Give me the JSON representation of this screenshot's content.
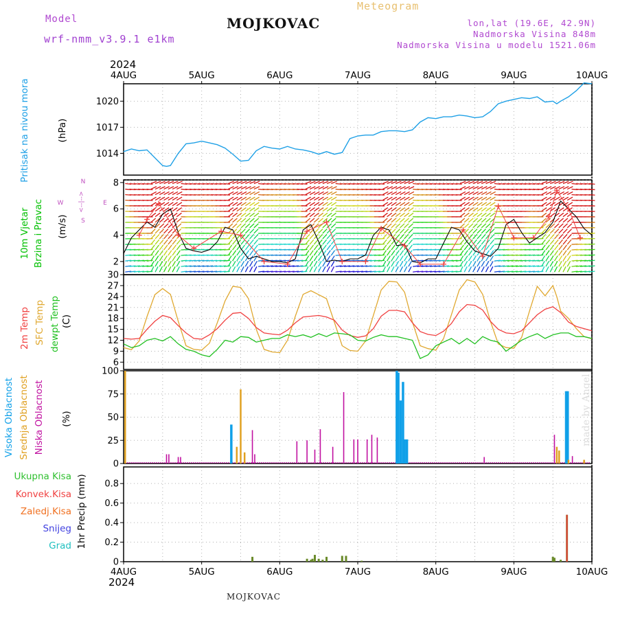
{
  "header": {
    "title": "MOJKOVAC",
    "meteogram_label": "Meteogram",
    "model_label": "Model",
    "model_name": "wrf-nmm_v3.9.1 e1km",
    "lonlat": "lon,lat (19.6E, 42.9N)",
    "elevation": "Nadmorska Visina 848m",
    "model_elevation": "Nadmorska Visina u modelu 1521.06m",
    "year_top": "2024",
    "year_bottom": "2024"
  },
  "footer": {
    "station": "MOJKOVAC",
    "watermark": "made by Angel"
  },
  "colors": {
    "pressure": "#1ea0e6",
    "wind_green": "#00c000",
    "temp2m": "#f04040",
    "sfc": "#e0a830",
    "dewpoint": "#20c020",
    "high_cloud": "#10a0e8",
    "mid_cloud": "#e0a020",
    "low_cloud": "#c010a0",
    "total_precip": "#30c030",
    "conv_precip": "#f04040",
    "frz_precip": "#f07020",
    "snow": "#4040e0",
    "hail": "#20c0c0",
    "wind_label": "#c050c0"
  },
  "x_axis": {
    "labels": [
      "4AUG",
      "5AUG",
      "6AUG",
      "7AUG",
      "8AUG",
      "9AUG",
      "10AUG"
    ],
    "range_days": [
      0,
      6
    ]
  },
  "panels": {
    "pressure": {
      "labels": [
        "Pritisak na nivou mora",
        "(hPa)"
      ],
      "ticks": [
        "1020",
        "1017",
        "1014"
      ],
      "ylim": [
        1011.5,
        1022
      ]
    },
    "wind": {
      "labels": [
        "10m Vjetar",
        "Brzina i Pravac",
        "(m/s)"
      ],
      "ticks": [
        "8",
        "6",
        "4",
        "2"
      ],
      "ylim": [
        1,
        8.2
      ],
      "compass": {
        "n": "N",
        "s": "S",
        "e": "E",
        "w": "W",
        "arrow": "<--|-->"
      }
    },
    "temperature": {
      "labels": [
        "2m Temp",
        "SFC Temp",
        "dewpt Temp",
        "(C)"
      ],
      "ticks": [
        "30",
        "27",
        "24",
        "21",
        "18",
        "15",
        "12",
        "9",
        "6"
      ],
      "ylim": [
        4,
        30
      ]
    },
    "cloud": {
      "labels": [
        "Visoka Oblacnost",
        "Srednja Oblacnost",
        "Niska Oblacnost",
        "(%)"
      ],
      "ticks": [
        "100",
        "75",
        "50",
        "25",
        "0"
      ],
      "ylim": [
        0,
        100
      ]
    },
    "precip": {
      "labels": [
        "Ukupna Kisa",
        "Konvek.Kisa",
        "Zaledj.Kisa",
        "Snijeg",
        "Grad",
        "1hr Precip (mm)"
      ],
      "ticks": [
        "0.8",
        "0.6",
        "0.4",
        "0.2",
        "0"
      ],
      "ylim": [
        0,
        0.97
      ]
    }
  },
  "chart_data": [
    {
      "type": "line",
      "name": "pressure",
      "x_unit": "days since 4AUG 00Z",
      "series": [
        {
          "name": "Pritisak na nivou mora",
          "x": [
            0,
            0.1,
            0.2,
            0.3,
            0.4,
            0.5,
            0.55,
            0.6,
            0.7,
            0.8,
            0.9,
            1.0,
            1.1,
            1.2,
            1.3,
            1.4,
            1.5,
            1.6,
            1.7,
            1.8,
            1.9,
            2.0,
            2.1,
            2.2,
            2.3,
            2.4,
            2.5,
            2.6,
            2.7,
            2.8,
            2.9,
            3.0,
            3.1,
            3.2,
            3.3,
            3.4,
            3.5,
            3.6,
            3.7,
            3.8,
            3.9,
            4.0,
            4.1,
            4.2,
            4.3,
            4.4,
            4.5,
            4.6,
            4.7,
            4.8,
            4.9,
            5.0,
            5.1,
            5.2,
            5.3,
            5.4,
            5.5,
            5.55,
            5.6,
            5.7,
            5.8,
            5.9,
            6.0
          ],
          "y": [
            1014.2,
            1014.5,
            1014.3,
            1014.4,
            1013.5,
            1012.6,
            1012.5,
            1012.6,
            1014.0,
            1015.1,
            1015.2,
            1015.4,
            1015.2,
            1015.0,
            1014.6,
            1013.9,
            1013.1,
            1013.2,
            1014.3,
            1014.8,
            1014.6,
            1014.5,
            1014.8,
            1014.5,
            1014.4,
            1014.2,
            1013.9,
            1014.2,
            1013.9,
            1014.1,
            1015.7,
            1016.0,
            1016.1,
            1016.1,
            1016.5,
            1016.6,
            1016.6,
            1016.5,
            1016.7,
            1017.6,
            1018.1,
            1018.0,
            1018.2,
            1018.2,
            1018.4,
            1018.3,
            1018.1,
            1018.2,
            1018.8,
            1019.7,
            1020.0,
            1020.2,
            1020.4,
            1020.3,
            1020.5,
            1019.9,
            1020.0,
            1019.7,
            1020.0,
            1020.5,
            1021.2,
            1022.1,
            1022.0
          ]
        }
      ]
    },
    {
      "type": "line",
      "name": "wind",
      "x_unit": "days since 4AUG 00Z",
      "series": [
        {
          "name": "wind speed",
          "x": [
            0,
            0.1,
            0.2,
            0.3,
            0.4,
            0.5,
            0.6,
            0.7,
            0.8,
            0.9,
            1.0,
            1.1,
            1.2,
            1.3,
            1.4,
            1.5,
            1.6,
            1.7,
            1.8,
            1.9,
            2.0,
            2.1,
            2.2,
            2.3,
            2.4,
            2.5,
            2.6,
            2.7,
            2.8,
            2.9,
            3.0,
            3.1,
            3.2,
            3.3,
            3.4,
            3.5,
            3.6,
            3.7,
            3.8,
            3.9,
            4.0,
            4.1,
            4.2,
            4.3,
            4.4,
            4.5,
            4.6,
            4.7,
            4.8,
            4.9,
            5.0,
            5.1,
            5.2,
            5.3,
            5.4,
            5.5,
            5.6,
            5.7,
            5.8,
            5.9,
            6.0
          ],
          "y": [
            2.6,
            3.8,
            4.4,
            5.0,
            4.6,
            5.6,
            6.0,
            4.2,
            3.0,
            2.8,
            2.7,
            2.9,
            3.5,
            4.6,
            4.4,
            3.0,
            2.2,
            2.4,
            2.2,
            2.0,
            2.0,
            1.9,
            2.2,
            4.4,
            4.8,
            3.5,
            2.0,
            2.1,
            2.0,
            2.2,
            2.2,
            2.5,
            4.0,
            4.6,
            4.4,
            3.2,
            3.3,
            2.0,
            1.9,
            2.2,
            2.2,
            3.4,
            4.6,
            4.4,
            3.5,
            2.8,
            2.6,
            2.4,
            3.0,
            4.8,
            5.2,
            4.2,
            3.4,
            3.8,
            4.2,
            5.0,
            6.6,
            6.0,
            5.4,
            4.5,
            4.0
          ]
        },
        {
          "name": "wind gust",
          "x": [
            0.2,
            0.3,
            0.45,
            0.7,
            0.9,
            1.25,
            1.5,
            1.8,
            2.1,
            2.35,
            2.6,
            2.8,
            3.1,
            3.3,
            3.6,
            3.8,
            4.1,
            4.35,
            4.6,
            4.8,
            5.0,
            5.25,
            5.45,
            5.55,
            5.7,
            5.85
          ],
          "y": [
            4.0,
            5.2,
            6.4,
            4.0,
            3.0,
            4.3,
            4.0,
            2.0,
            1.8,
            4.3,
            5.0,
            2.0,
            2.0,
            4.5,
            3.2,
            1.8,
            1.8,
            4.4,
            2.4,
            6.2,
            3.8,
            3.8,
            5.4,
            7.4,
            6.0,
            3.8
          ]
        }
      ]
    },
    {
      "type": "line",
      "name": "temperature",
      "x_unit": "days since 4AUG 00Z",
      "series": [
        {
          "name": "2m Temp",
          "x": [
            0,
            0.1,
            0.2,
            0.3,
            0.4,
            0.5,
            0.6,
            0.7,
            0.8,
            0.9,
            1.0,
            1.1,
            1.2,
            1.3,
            1.4,
            1.5,
            1.6,
            1.7,
            1.8,
            1.9,
            2.0,
            2.1,
            2.2,
            2.3,
            2.4,
            2.5,
            2.6,
            2.7,
            2.8,
            2.9,
            3.0,
            3.1,
            3.2,
            3.3,
            3.4,
            3.5,
            3.6,
            3.7,
            3.8,
            3.9,
            4.0,
            4.1,
            4.2,
            4.3,
            4.4,
            4.5,
            4.6,
            4.7,
            4.8,
            4.9,
            5.0,
            5.1,
            5.2,
            5.3,
            5.4,
            5.5,
            5.6,
            5.7,
            5.8,
            5.9,
            6.0
          ],
          "y": [
            12.5,
            12.3,
            12.5,
            15.0,
            17.2,
            18.8,
            18.2,
            16.0,
            14.0,
            12.5,
            12.3,
            13.5,
            15.2,
            17.5,
            19.4,
            19.6,
            18.0,
            15.5,
            14.0,
            13.7,
            13.5,
            14.8,
            16.8,
            18.4,
            18.6,
            18.8,
            18.4,
            17.5,
            14.8,
            13.3,
            12.8,
            13.2,
            15.2,
            18.6,
            20.2,
            20.2,
            19.8,
            16.8,
            14.4,
            13.6,
            13.3,
            14.5,
            16.6,
            19.8,
            21.8,
            21.6,
            20.3,
            17.2,
            15.0,
            14.0,
            13.8,
            14.6,
            16.8,
            19.0,
            20.5,
            21.2,
            19.6,
            17.0,
            15.8,
            15.2,
            14.6
          ]
        },
        {
          "name": "SFC Temp",
          "x": [
            0,
            0.1,
            0.2,
            0.3,
            0.4,
            0.5,
            0.6,
            0.7,
            0.8,
            0.9,
            1.0,
            1.1,
            1.2,
            1.3,
            1.4,
            1.5,
            1.6,
            1.7,
            1.8,
            1.9,
            2.0,
            2.1,
            2.2,
            2.3,
            2.4,
            2.5,
            2.6,
            2.7,
            2.8,
            2.9,
            3.0,
            3.1,
            3.2,
            3.3,
            3.4,
            3.5,
            3.6,
            3.7,
            3.8,
            3.9,
            4.0,
            4.1,
            4.2,
            4.3,
            4.4,
            4.5,
            4.6,
            4.7,
            4.8,
            4.9,
            5.0,
            5.1,
            5.2,
            5.3,
            5.4,
            5.5,
            5.55,
            5.6,
            5.7,
            5.8,
            5.9,
            6.0
          ],
          "y": [
            10.0,
            9.4,
            11.8,
            18.5,
            24.5,
            26.2,
            24.6,
            17.2,
            10.5,
            9.5,
            9.3,
            11.2,
            16.8,
            22.8,
            26.8,
            26.5,
            23.4,
            15.0,
            9.5,
            8.8,
            8.6,
            12.0,
            18.6,
            24.6,
            25.6,
            24.5,
            23.4,
            17.0,
            10.5,
            9.2,
            9.0,
            11.8,
            18.8,
            25.8,
            28.2,
            28.0,
            25.2,
            17.0,
            10.5,
            9.7,
            9.3,
            12.5,
            19.0,
            25.8,
            28.6,
            28.0,
            24.6,
            17.2,
            11.0,
            10.0,
            9.8,
            12.8,
            20.0,
            26.8,
            24.2,
            27.0,
            24.0,
            20.0,
            18.0,
            15.2,
            13.0,
            12.4
          ]
        },
        {
          "name": "dewpt Temp",
          "x": [
            0,
            0.1,
            0.2,
            0.3,
            0.4,
            0.5,
            0.6,
            0.7,
            0.8,
            0.9,
            1.0,
            1.1,
            1.2,
            1.3,
            1.4,
            1.5,
            1.6,
            1.7,
            1.8,
            1.9,
            2.0,
            2.1,
            2.2,
            2.3,
            2.4,
            2.5,
            2.6,
            2.7,
            2.8,
            2.9,
            3.0,
            3.1,
            3.2,
            3.3,
            3.4,
            3.5,
            3.6,
            3.7,
            3.8,
            3.9,
            4.0,
            4.1,
            4.2,
            4.3,
            4.4,
            4.5,
            4.6,
            4.7,
            4.8,
            4.9,
            5.0,
            5.1,
            5.2,
            5.3,
            5.4,
            5.5,
            5.6,
            5.7,
            5.8,
            5.9,
            6.0
          ],
          "y": [
            11.0,
            10.0,
            10.5,
            12.0,
            12.5,
            11.8,
            13.0,
            11.0,
            9.5,
            9.0,
            8.0,
            7.5,
            9.5,
            12.0,
            11.5,
            13.0,
            12.8,
            11.5,
            12.0,
            12.5,
            12.5,
            13.5,
            13.0,
            13.5,
            12.8,
            13.8,
            13.0,
            14.0,
            13.8,
            13.5,
            12.0,
            11.8,
            12.8,
            13.5,
            13.0,
            13.0,
            12.5,
            12.0,
            7.0,
            8.0,
            10.5,
            11.5,
            12.5,
            11.0,
            12.5,
            11.0,
            13.0,
            12.0,
            11.5,
            9.0,
            10.5,
            12.0,
            13.0,
            13.8,
            12.5,
            13.5,
            14.0,
            14.0,
            13.0,
            13.0,
            12.5
          ]
        }
      ]
    },
    {
      "type": "bar",
      "name": "cloud",
      "x_unit": "days since 4AUG 00Z",
      "series": [
        {
          "name": "Visoka Oblacnost",
          "x": [
            1.38,
            3.5,
            3.52,
            3.55,
            3.58,
            3.6,
            3.63,
            5.67,
            5.69
          ],
          "values": [
            42,
            100,
            98,
            68,
            88,
            26,
            26,
            78,
            78
          ]
        },
        {
          "name": "Srednja Oblacnost",
          "x": [
            0.02,
            1.45,
            1.5,
            1.55,
            5.55,
            5.58,
            5.7,
            5.9
          ],
          "values": [
            100,
            18,
            80,
            12,
            18,
            14,
            4,
            4
          ]
        },
        {
          "name": "Niska Oblacnost",
          "x": [
            0.55,
            0.58,
            0.7,
            0.73,
            1.65,
            1.68,
            2.22,
            2.35,
            2.45,
            2.52,
            2.68,
            2.82,
            2.95,
            3.0,
            3.12,
            3.18,
            3.25,
            4.62,
            5.52,
            5.75
          ],
          "values": [
            10,
            10,
            7,
            7,
            36,
            10,
            24,
            25,
            15,
            37,
            18,
            77,
            26,
            26,
            26,
            31,
            28,
            7,
            31,
            8
          ]
        }
      ]
    },
    {
      "type": "bar",
      "name": "precip",
      "x_unit": "days since 4AUG 00Z",
      "series": [
        {
          "name": "Ukupna Kisa",
          "x": [
            1.65,
            2.35,
            2.4,
            2.42,
            2.45,
            2.5,
            2.55,
            2.6,
            2.8,
            2.85,
            3.05,
            5.5,
            5.52,
            5.6,
            5.68
          ],
          "values": [
            0.05,
            0.03,
            0.02,
            0.03,
            0.07,
            0.03,
            0.02,
            0.05,
            0.06,
            0.06,
            0.01,
            0.05,
            0.04,
            0.02,
            0.48
          ]
        },
        {
          "name": "Konvek.Kisa",
          "x": [
            5.68
          ],
          "values": [
            0.48
          ]
        }
      ]
    }
  ]
}
